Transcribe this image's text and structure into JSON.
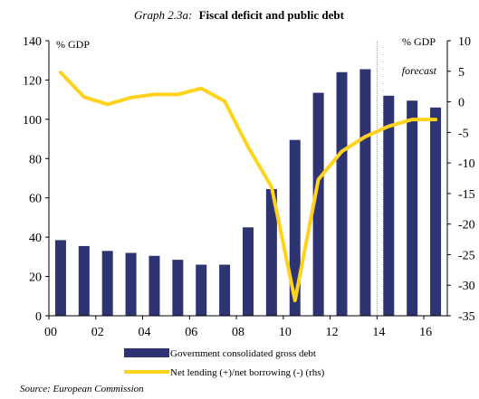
{
  "chart_data": {
    "type": "bar+line",
    "title_prefix": "Graph 2.3a:",
    "title_main": "Fiscal deficit and public debt",
    "left_axis_label": "% GDP",
    "right_axis_label": "% GDP",
    "forecast_label": "forecast",
    "forecast_start_index": 14,
    "y_left": {
      "min": 0,
      "max": 140,
      "ticks": [
        0,
        20,
        40,
        60,
        80,
        100,
        120,
        140
      ]
    },
    "y_right": {
      "min": -35,
      "max": 10,
      "ticks": [
        10,
        5,
        0,
        -5,
        -10,
        -15,
        -20,
        -25,
        -30,
        -35
      ],
      "tick_labels": [
        "10",
        "5",
        "0",
        "-5",
        "-10",
        "-15",
        "-20",
        "-25",
        "-30",
        "-35"
      ]
    },
    "x_tick_labels": [
      "00",
      "02",
      "04",
      "06",
      "08",
      "10",
      "12",
      "14",
      "16"
    ],
    "series": [
      {
        "name": "Government consolidated gross debt",
        "axis": "left",
        "kind": "bar",
        "color": "#2e3472",
        "values": [
          38.5,
          35.5,
          33,
          32,
          30.5,
          28.5,
          26,
          26,
          45,
          64.5,
          89.5,
          113.5,
          124,
          125.5,
          112,
          109.5,
          106
        ]
      },
      {
        "name": "Net lending (+)/net borrowing (-) (rhs)",
        "axis": "right",
        "kind": "line",
        "color": "#ffd21e",
        "values": [
          4.8,
          0.8,
          -0.4,
          0.7,
          1.2,
          1.2,
          2.2,
          0.1,
          -7.4,
          -13.9,
          -32.5,
          -12.7,
          -8.1,
          -5.7,
          -4,
          -2.9,
          -2.9
        ]
      }
    ],
    "source": "Source: European  Commission"
  }
}
